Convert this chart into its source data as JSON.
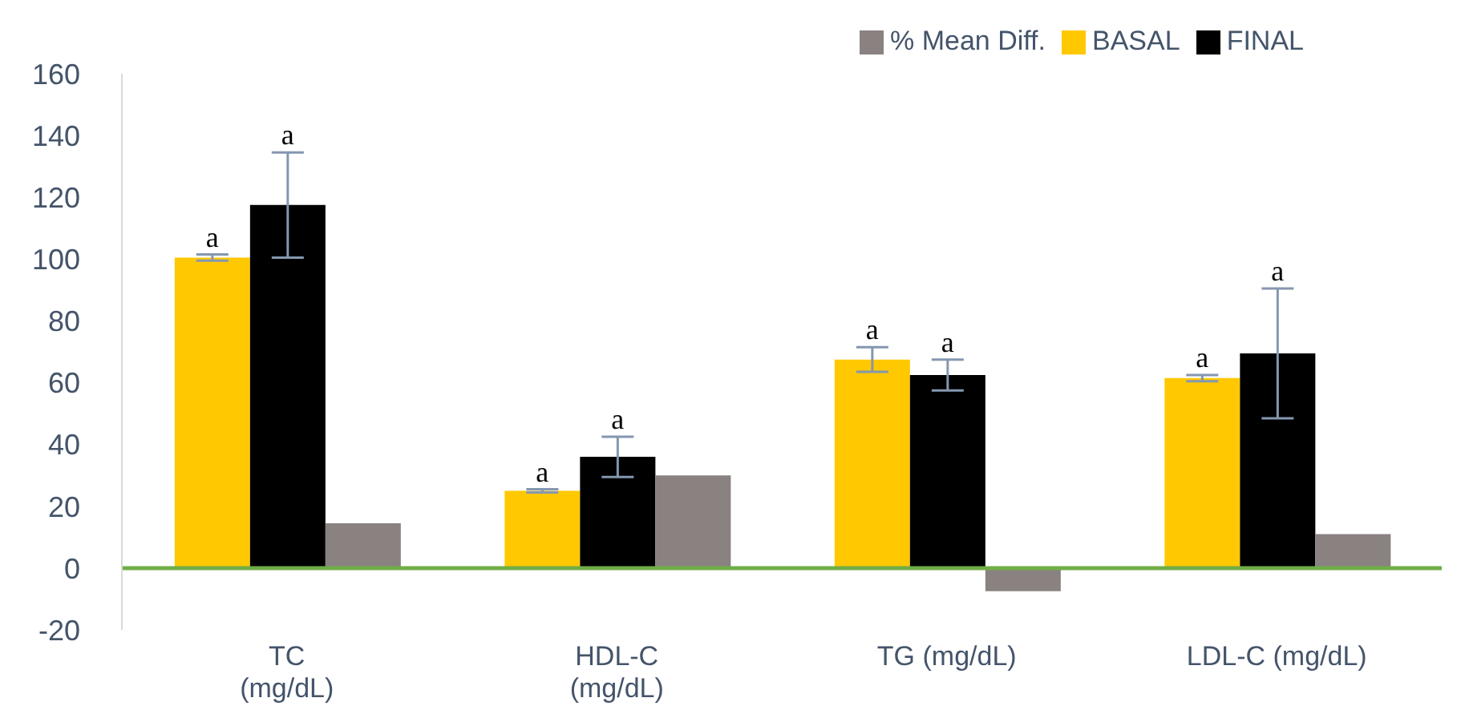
{
  "chart_data": {
    "type": "bar",
    "categories": [
      "TC\n(mg/dL)",
      "HDL-C\n(mg/dL)",
      "TG (mg/dL)",
      "LDL-C (mg/dL)"
    ],
    "series": [
      {
        "name": "BASAL",
        "color": "#ffc800",
        "values": [
          100.5,
          25,
          67.5,
          61.5
        ],
        "errors": [
          1,
          0.5,
          4,
          1
        ],
        "value_labels": [
          "a",
          "a",
          "a",
          "a"
        ]
      },
      {
        "name": "FINAL",
        "color": "#000000",
        "values": [
          117.5,
          36,
          62.5,
          69.5
        ],
        "errors": [
          17,
          6.5,
          5,
          21
        ],
        "value_labels": [
          "a",
          "a",
          "a",
          "a"
        ]
      },
      {
        "name": "% Mean Diff.",
        "color": "#898281",
        "values": [
          14.5,
          30,
          -7.5,
          11
        ]
      }
    ],
    "ylim": [
      -20,
      160
    ],
    "yticks": [
      -20,
      0,
      20,
      40,
      60,
      80,
      100,
      120,
      140,
      160
    ],
    "ref_lines": [
      {
        "axis": "y",
        "value": 0,
        "color": "#70ad47"
      }
    ],
    "grid": false,
    "legend": "top right"
  }
}
